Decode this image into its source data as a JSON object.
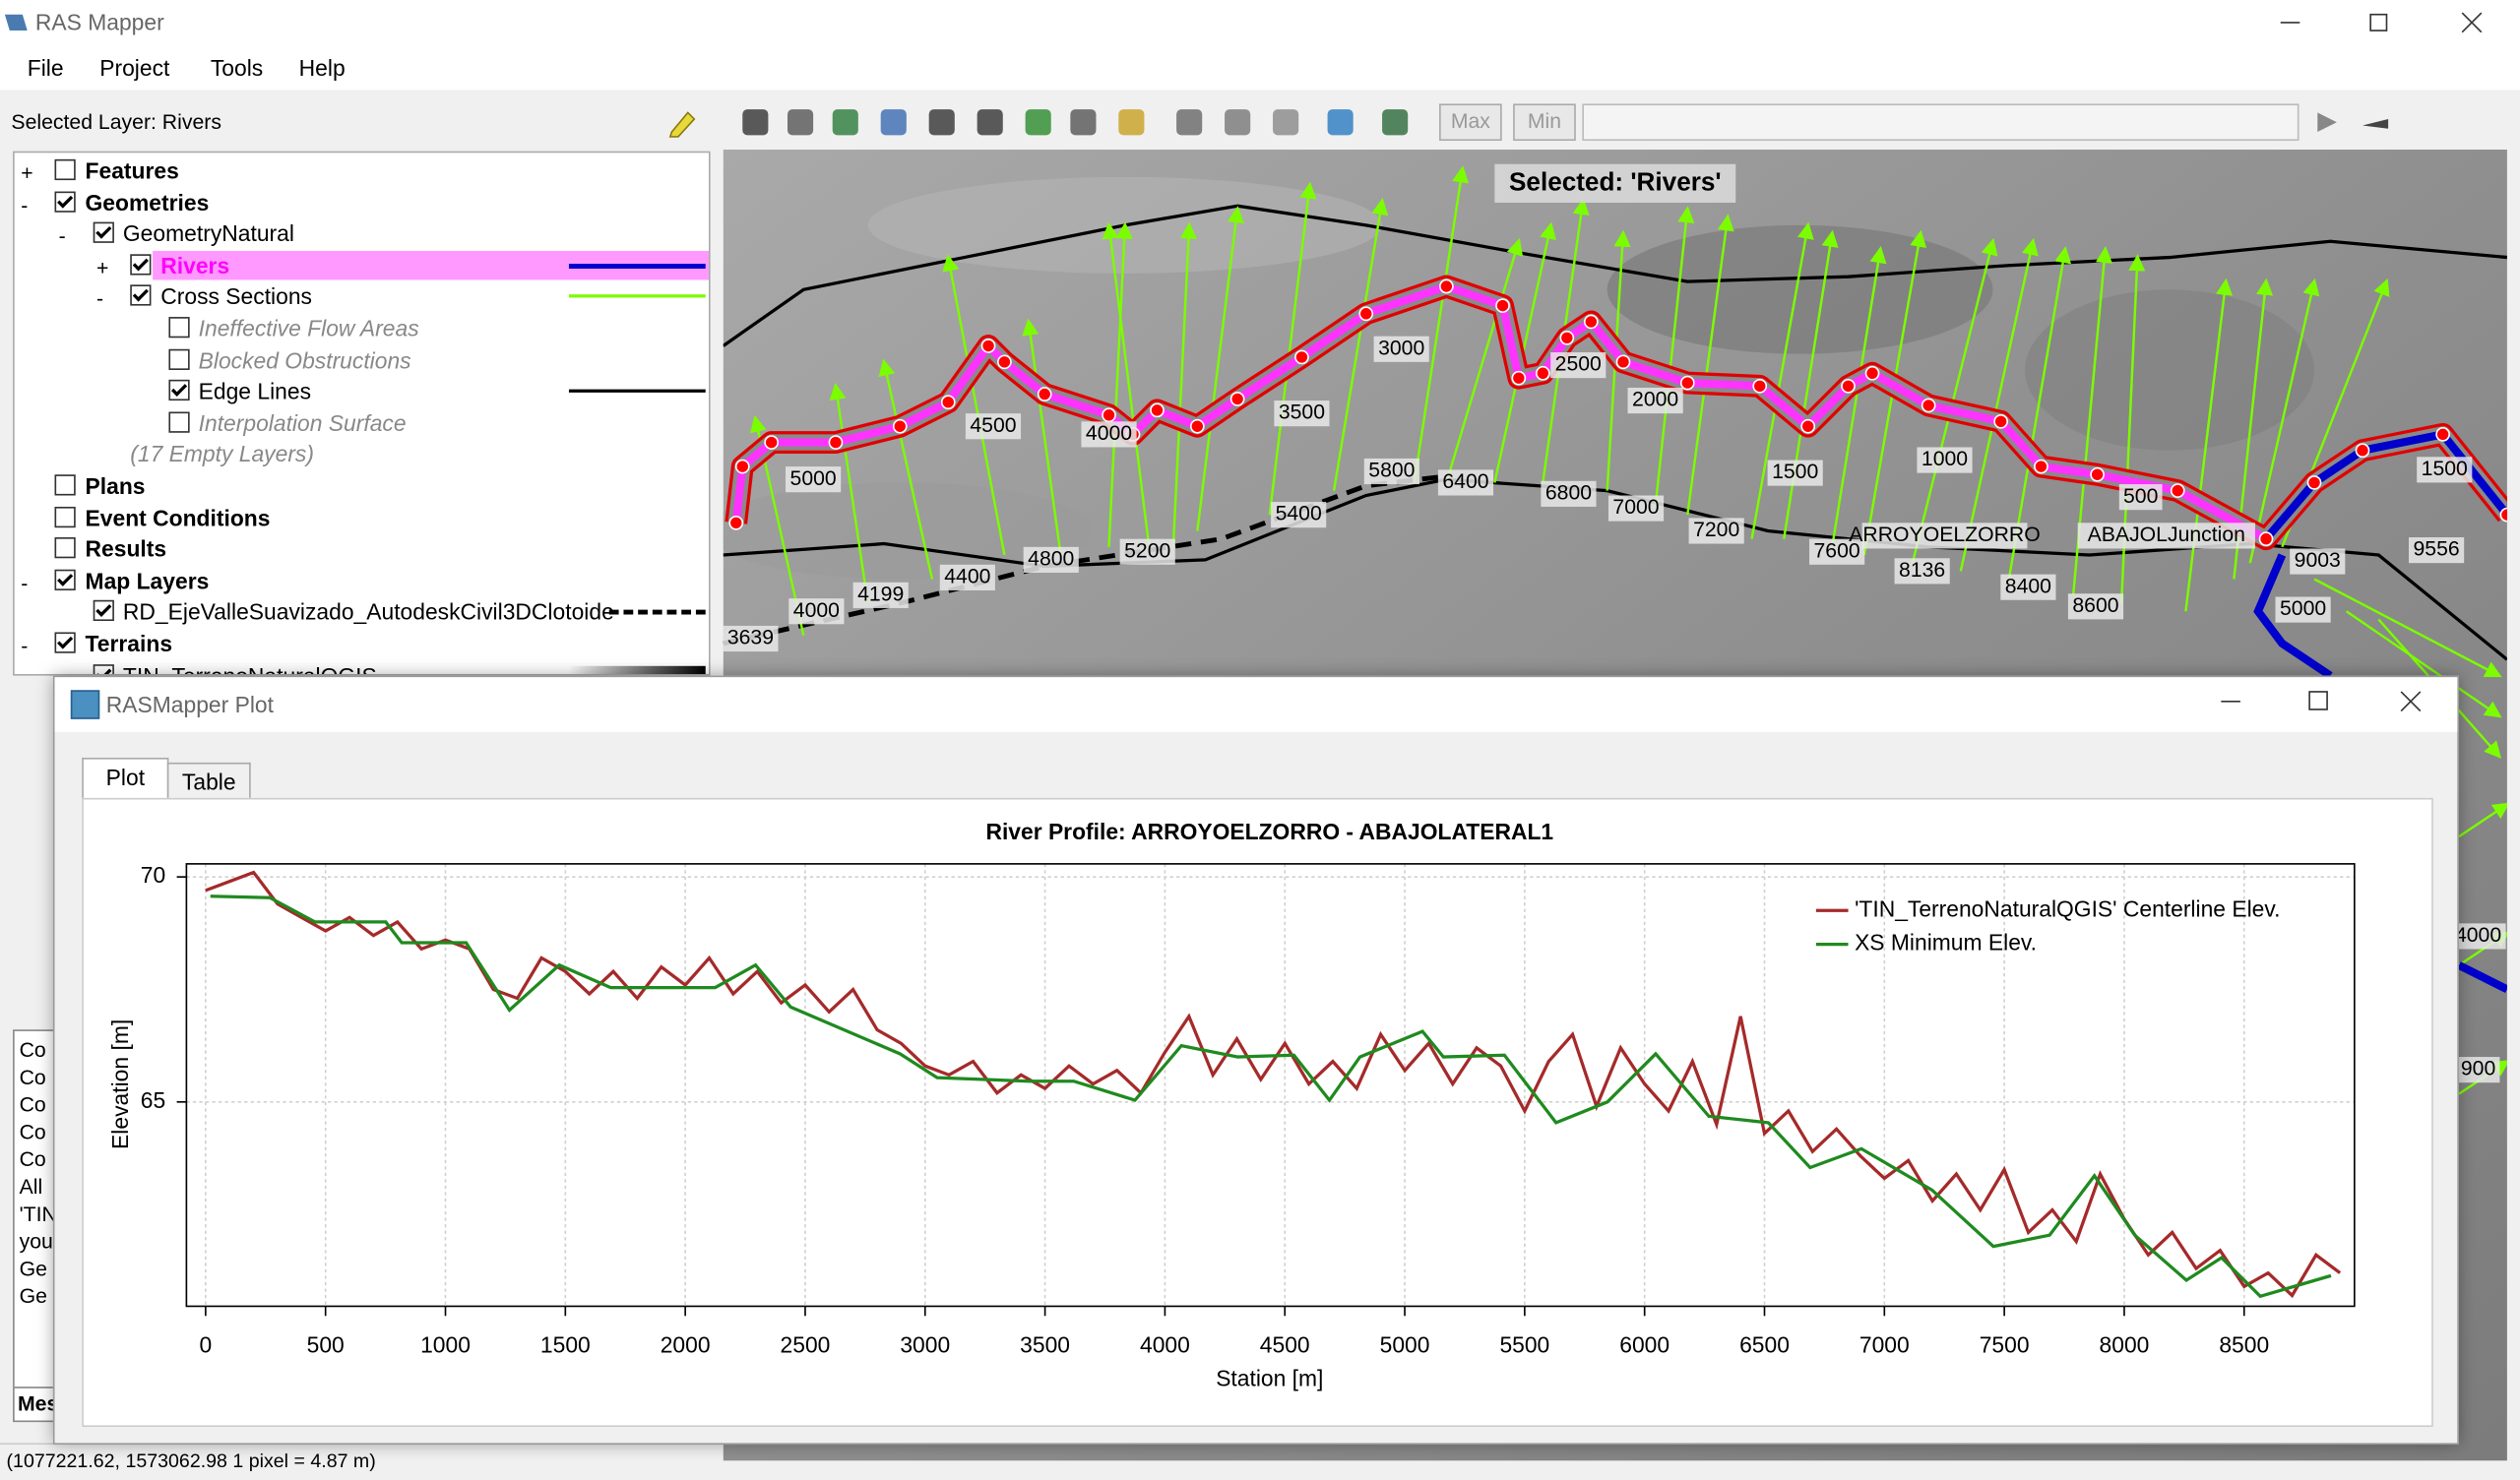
{
  "window": {
    "title": "RAS Mapper"
  },
  "menu": [
    "File",
    "Project",
    "Tools",
    "Help"
  ],
  "selected_layer": "Selected Layer: Rivers",
  "toolbar": {
    "buttons": [
      "Max",
      "Min"
    ]
  },
  "layers": [
    {
      "label": "Features",
      "checked": false
    },
    {
      "label": "Geometries",
      "checked": true
    },
    {
      "label": "GeometryNatural",
      "checked": true
    },
    {
      "label": "Rivers",
      "checked": true
    },
    {
      "label": "Cross Sections",
      "checked": true
    },
    {
      "label": "Ineffective Flow Areas",
      "checked": false
    },
    {
      "label": "Blocked Obstructions",
      "checked": false
    },
    {
      "label": "Edge Lines",
      "checked": true
    },
    {
      "label": "Interpolation Surface",
      "checked": false
    },
    {
      "label": "(17 Empty Layers)"
    },
    {
      "label": "Plans",
      "checked": false
    },
    {
      "label": "Event Conditions",
      "checked": false
    },
    {
      "label": "Results",
      "checked": false
    },
    {
      "label": "Map Layers",
      "checked": true
    },
    {
      "label": "RD_EjeValleSuavizado_AutodeskCivil3DClotoide",
      "checked": true
    },
    {
      "label": "Terrains",
      "checked": true
    },
    {
      "label": "TIN_TerrenoNaturalQGIS",
      "checked": true
    }
  ],
  "map": {
    "selection": "Selected: 'Rivers'",
    "labels": [
      "5000",
      "4500",
      "4000",
      "3500",
      "3000",
      "2500",
      "2000",
      "1500",
      "1000",
      "500",
      "1500",
      "5800",
      "6400",
      "6800",
      "7000",
      "7200",
      "5400",
      "5200",
      "4800",
      "4400",
      "4199",
      "4000",
      "3639",
      "7600",
      "8136",
      "8400",
      "8600",
      "9003",
      "9556",
      "5000",
      "ARROYOELZORRO",
      "ABAJOLJunction",
      "4000",
      "900"
    ]
  },
  "messages": {
    "tab": "Mes",
    "lines": [
      "Co",
      "Co",
      "Co",
      "Co",
      "Co",
      "All",
      "'TIN",
      "you",
      "Ge",
      "Ge"
    ]
  },
  "status": "(1077221.62, 1573062.98  1 pixel = 4.87 m)",
  "plot_window": {
    "title": "RASMapper Plot",
    "tabs": [
      "Plot",
      "Table"
    ]
  },
  "chart_data": {
    "type": "line",
    "title": "River Profile: ARROYOELZORRO - ABAJOLATERAL1",
    "x_label": "Station [m]",
    "y_label": "Elevation [m]",
    "xlim": [
      -80,
      8960
    ],
    "ylim": [
      60.46,
      70.29
    ],
    "xticks": [
      0,
      500,
      1000,
      1500,
      2000,
      2500,
      3000,
      3500,
      4000,
      4500,
      5000,
      5500,
      6000,
      6500,
      7000,
      7500,
      8000,
      8500
    ],
    "yticks": [
      65,
      70
    ],
    "grid": true,
    "legend": "upper right",
    "series": [
      {
        "name": "'TIN_TerrenoNaturalQGIS' Centerline Elev.",
        "color": "#a52a2a",
        "x": [
          0,
          100,
          200,
          300,
          400,
          500,
          600,
          700,
          800,
          900,
          1000,
          1100,
          1200,
          1300,
          1400,
          1500,
          1600,
          1700,
          1800,
          1900,
          2000,
          2100,
          2200,
          2300,
          2400,
          2500,
          2600,
          2700,
          2800,
          2900,
          3000,
          3100,
          3200,
          3300,
          3400,
          3500,
          3600,
          3700,
          3800,
          3900,
          4000,
          4100,
          4200,
          4300,
          4400,
          4500,
          4600,
          4700,
          4800,
          4900,
          5000,
          5100,
          5200,
          5300,
          5400,
          5500,
          5600,
          5700,
          5800,
          5900,
          6000,
          6100,
          6200,
          6300,
          6400,
          6500,
          6600,
          6700,
          6800,
          6900,
          7000,
          7100,
          7200,
          7300,
          7400,
          7500,
          7600,
          7700,
          7800,
          7900,
          8000,
          8100,
          8200,
          8300,
          8400,
          8500,
          8600,
          8700,
          8800,
          8900
        ],
        "values": [
          69.7,
          69.9,
          70.1,
          69.4,
          69.1,
          68.8,
          69.1,
          68.7,
          69.0,
          68.4,
          68.6,
          68.4,
          67.5,
          67.3,
          68.2,
          67.9,
          67.4,
          67.9,
          67.3,
          68.0,
          67.6,
          68.2,
          67.4,
          67.9,
          67.2,
          67.6,
          67.0,
          67.5,
          66.6,
          66.3,
          65.8,
          65.6,
          65.9,
          65.2,
          65.6,
          65.3,
          65.8,
          65.4,
          65.7,
          65.2,
          66.1,
          66.9,
          65.6,
          66.4,
          65.5,
          66.3,
          65.4,
          65.9,
          65.3,
          66.5,
          65.7,
          66.3,
          65.4,
          66.2,
          65.8,
          64.8,
          65.9,
          66.5,
          64.9,
          66.2,
          65.4,
          64.8,
          65.9,
          64.5,
          66.9,
          64.3,
          64.8,
          63.9,
          64.4,
          63.8,
          63.3,
          63.7,
          62.8,
          63.4,
          62.6,
          63.5,
          62.1,
          62.6,
          61.9,
          63.4,
          62.4,
          61.6,
          62.1,
          61.3,
          61.7,
          60.9,
          61.2,
          60.7,
          61.6,
          61.2
        ]
      },
      {
        "name": "XS Minimum Elev.",
        "color": "#1f8a1f",
        "x": [
          20,
          268,
          456,
          751,
          818,
          1086,
          1267,
          1475,
          1689,
          2125,
          2293,
          2440,
          2896,
          3050,
          3432,
          3620,
          3875,
          4069,
          4304,
          4538,
          4686,
          4813,
          5074,
          5161,
          5416,
          5631,
          5845,
          6046,
          6268,
          6516,
          6690,
          6904,
          7199,
          7454,
          7689,
          7876,
          8044,
          8259,
          8406,
          8567,
          8862
        ],
        "values": [
          69.57,
          69.54,
          69.0,
          69.0,
          68.54,
          68.54,
          67.04,
          68.04,
          67.54,
          67.54,
          68.04,
          67.11,
          66.07,
          65.54,
          65.46,
          65.46,
          65.04,
          66.25,
          66.0,
          66.04,
          65.04,
          66.0,
          66.57,
          66.0,
          66.04,
          64.54,
          65.0,
          66.07,
          64.68,
          64.54,
          63.54,
          63.96,
          63.04,
          61.79,
          62.04,
          63.36,
          62.04,
          61.04,
          61.54,
          60.68,
          61.14
        ]
      }
    ]
  }
}
